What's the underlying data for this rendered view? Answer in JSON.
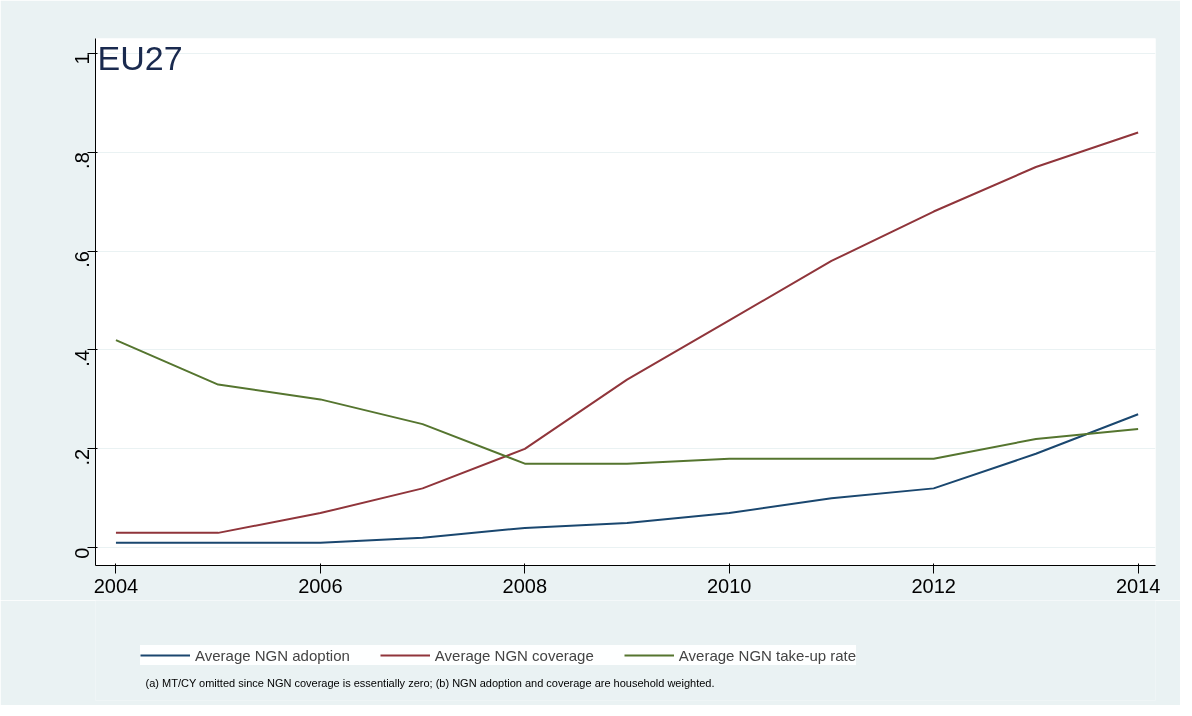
{
  "chart_data": {
    "type": "line",
    "title": "EU27",
    "x": [
      2004,
      2005,
      2006,
      2007,
      2008,
      2009,
      2010,
      2011,
      2012,
      2013,
      2014
    ],
    "series": [
      {
        "name": "Average NGN adoption",
        "color": "#1a476f",
        "values": [
          0.01,
          0.01,
          0.01,
          0.02,
          0.04,
          0.05,
          0.07,
          0.1,
          0.12,
          0.19,
          0.27
        ]
      },
      {
        "name": "Average NGN coverage",
        "color": "#90353b",
        "values": [
          0.03,
          0.03,
          0.07,
          0.12,
          0.2,
          0.34,
          0.46,
          0.58,
          0.68,
          0.77,
          0.84
        ]
      },
      {
        "name": "Average NGN take-up rate",
        "color": "#55752f",
        "values": [
          0.42,
          0.33,
          0.3,
          0.25,
          0.17,
          0.17,
          0.18,
          0.18,
          0.18,
          0.22,
          0.24
        ]
      }
    ],
    "xlim": [
      2003.8,
      2014.17
    ],
    "ylim": [
      -0.036,
      1.03
    ],
    "xticks": [
      2004,
      2006,
      2008,
      2010,
      2012,
      2014
    ],
    "yticks": [
      {
        "value": 0,
        "label": "0"
      },
      {
        "value": 0.2,
        "label": ".2"
      },
      {
        "value": 0.4,
        "label": ".4"
      },
      {
        "value": 0.6,
        "label": ".6"
      },
      {
        "value": 0.8,
        "label": ".8"
      },
      {
        "value": 1,
        "label": "1"
      }
    ],
    "grid": "y",
    "legend": "bottom",
    "marker": "none",
    "line_style": "solid",
    "annotations": [
      "(a) MT/CY omitted since NGN coverage is essentially zero; (b) NGN adoption and coverage are household weighted."
    ]
  }
}
